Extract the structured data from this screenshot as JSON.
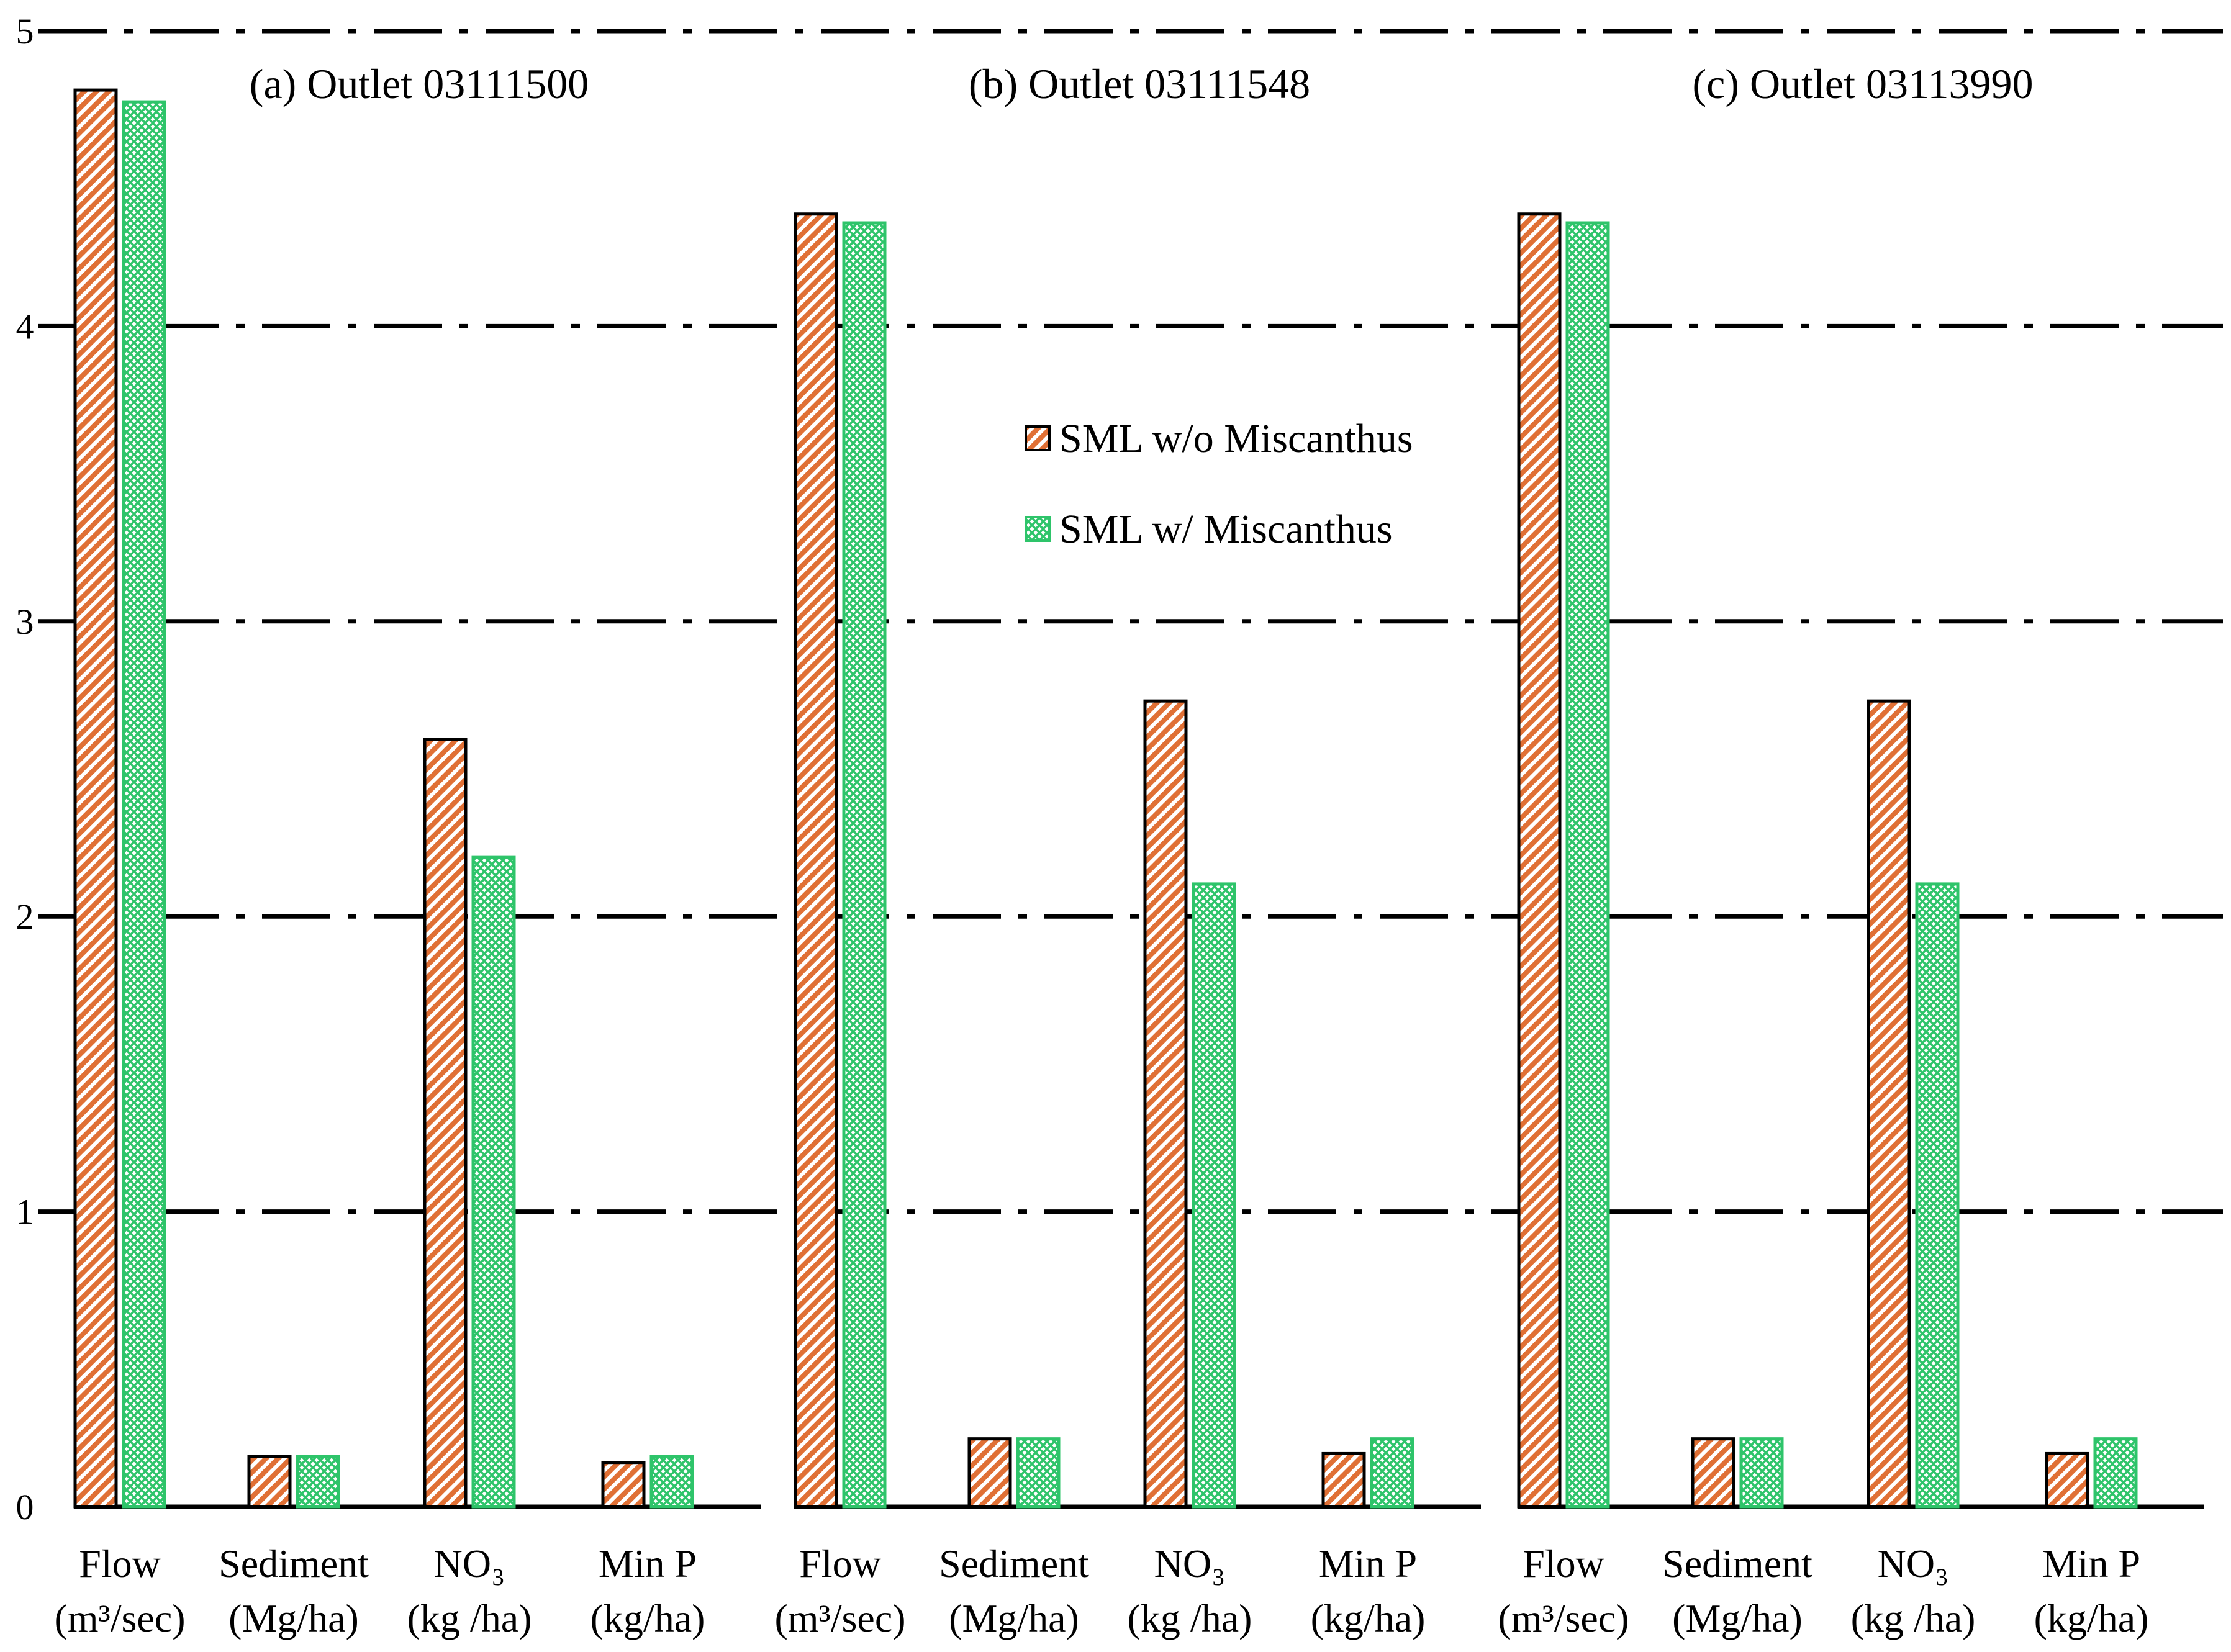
{
  "chart_data": {
    "type": "bar",
    "title": "",
    "xlabel": "",
    "ylabel": "",
    "ylim": [
      0,
      5
    ],
    "yticks": [
      "0",
      "1",
      "2",
      "3",
      "4",
      "5"
    ],
    "grid": true,
    "legend_position": "upper-middle",
    "colors": {
      "without": "#e07035",
      "with": "#2ec46a"
    },
    "categories": [
      {
        "line1": "Flow",
        "line2": "(m³/sec)"
      },
      {
        "line1": "Sediment",
        "line2": "(Mg/ha)"
      },
      {
        "line1": "NO₃",
        "line2": "(kg /ha)"
      },
      {
        "line1": "Min P",
        "line2": "(kg/ha)"
      }
    ],
    "panels": [
      {
        "title": "(a) Outlet 03111500",
        "series": [
          {
            "name": "SML w/o Miscanthus",
            "values": [
              4.8,
              0.17,
              2.6,
              0.15
            ]
          },
          {
            "name": "SML w/ Miscanthus",
            "values": [
              4.76,
              0.17,
              2.2,
              0.17
            ]
          }
        ]
      },
      {
        "title": "(b) Outlet 03111548",
        "series": [
          {
            "name": "SML w/o Miscanthus",
            "values": [
              4.38,
              0.23,
              2.73,
              0.18
            ]
          },
          {
            "name": "SML w/ Miscanthus",
            "values": [
              4.35,
              0.23,
              2.11,
              0.23
            ]
          }
        ]
      },
      {
        "title": "(c) Outlet 03113990",
        "series": [
          {
            "name": "SML w/o Miscanthus",
            "values": [
              4.38,
              0.23,
              2.73,
              0.18
            ]
          },
          {
            "name": "SML w/ Miscanthus",
            "values": [
              4.35,
              0.23,
              2.11,
              0.23
            ]
          }
        ]
      }
    ],
    "legend": [
      {
        "key": "without",
        "label": "SML w/o Miscanthus"
      },
      {
        "key": "with",
        "label": "SML w/ Miscanthus"
      }
    ]
  }
}
